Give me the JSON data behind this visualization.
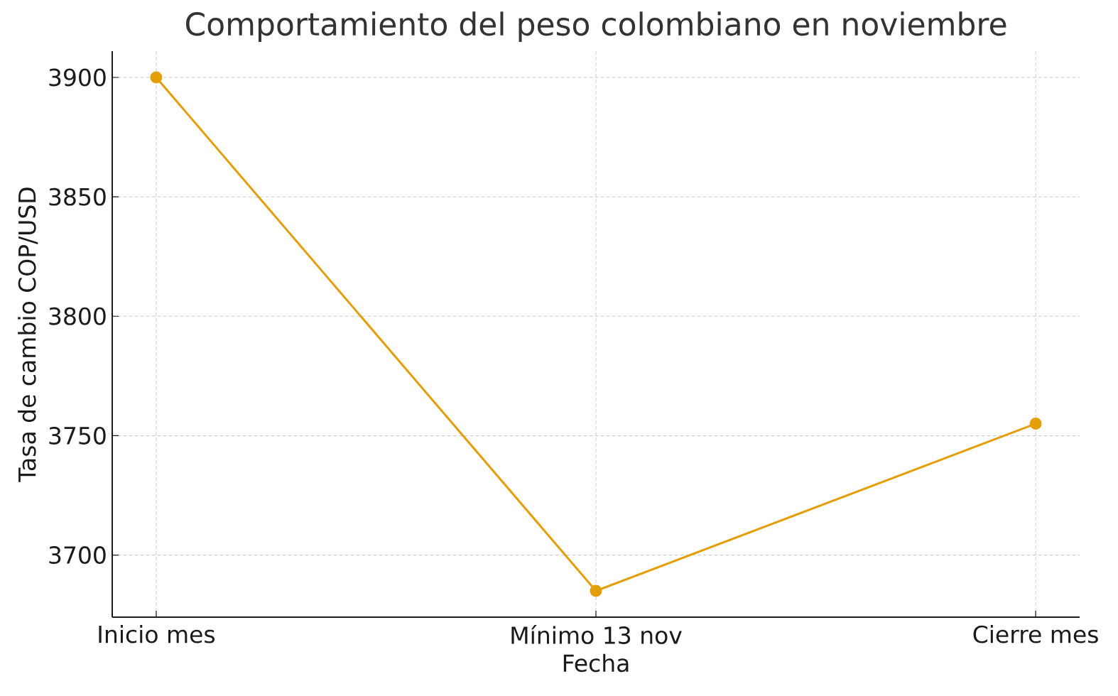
{
  "chart_data": {
    "type": "line",
    "title": "Comportamiento del peso colombiano en noviembre",
    "xlabel": "Fecha",
    "ylabel": "Tasa de cambio COP/USD",
    "categories": [
      "Inicio mes",
      "Mínimo 13 nov",
      "Cierre mes"
    ],
    "series": [
      {
        "color": "#e39f0a",
        "values": [
          3900,
          3685,
          3755
        ]
      }
    ],
    "ylim": [
      3674,
      3911
    ],
    "yticks": [
      3700,
      3750,
      3800,
      3850,
      3900
    ],
    "grid": true,
    "marker": "circle",
    "line_style": "solid"
  }
}
